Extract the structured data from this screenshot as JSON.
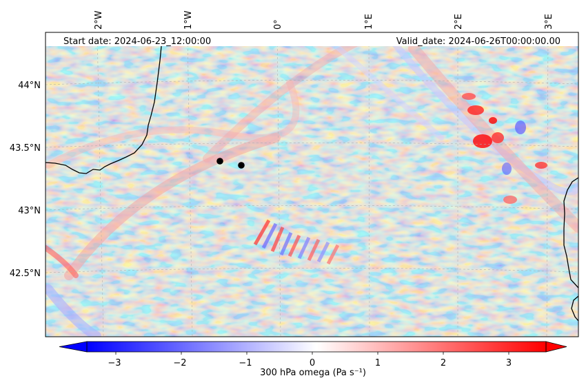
{
  "header": {
    "start_date": "Start date: 2024-06-23_12:00:00",
    "valid_date": "Valid_date: 2024-06-26T00:00:00.00"
  },
  "axes": {
    "lon_ticks": [
      "2°W",
      "1°W",
      "0°",
      "1°E",
      "2°E",
      "3°E"
    ],
    "lat_ticks": [
      "44°N",
      "43.5°N",
      "43°N",
      "42.5°N"
    ]
  },
  "colorbar": {
    "label": "300 hPa omega (Pa s⁻¹)",
    "ticks": [
      "−3",
      "−2",
      "−1",
      "0",
      "1",
      "2",
      "3"
    ],
    "colormap": [
      "#0000ff",
      "#ffffff",
      "#ff0000"
    ]
  },
  "map": {
    "coastline_color": "#000000",
    "marker_color": "#000000",
    "marker_count": 2
  },
  "chart_data": {
    "type": "heatmap",
    "title": "",
    "variable": "300 hPa omega",
    "units": "Pa s⁻¹",
    "vmin": -3.5,
    "vmax": 3.5,
    "extend": "both",
    "lon_range": [
      -2.6,
      3.3
    ],
    "lat_range": [
      42.0,
      44.4
    ],
    "grid": true,
    "points": [
      {
        "lon": -0.63,
        "lat": 43.39
      },
      {
        "lon": -0.4,
        "lat": 43.36
      }
    ]
  }
}
